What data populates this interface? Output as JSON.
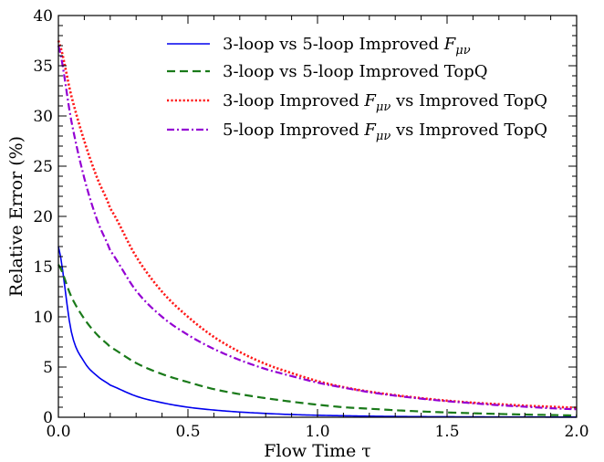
{
  "chart_data": {
    "type": "line",
    "xlabel": "Flow Time τ",
    "ylabel": "Relative Error (%)",
    "xlim": [
      0.0,
      2.0
    ],
    "ylim": [
      0,
      40
    ],
    "x_ticks": [
      0.0,
      0.5,
      1.0,
      1.5,
      2.0
    ],
    "x_tick_labels": [
      "0.0",
      "0.5",
      "1.0",
      "1.5",
      "2.0"
    ],
    "y_ticks": [
      0,
      5,
      10,
      15,
      20,
      25,
      30,
      35,
      40
    ],
    "y_tick_labels": [
      "0",
      "5",
      "10",
      "15",
      "20",
      "25",
      "30",
      "35",
      "40"
    ],
    "grid": false,
    "legend_position": "top-right",
    "x": [
      0.0,
      0.05,
      0.1,
      0.15,
      0.2,
      0.3,
      0.4,
      0.5,
      0.6,
      0.7,
      0.8,
      0.9,
      1.0,
      1.1,
      1.2,
      1.3,
      1.4,
      1.5,
      1.6,
      1.7,
      1.8,
      1.9,
      2.0
    ],
    "series": [
      {
        "name": "3-loop vs 5-loop Improved Fμν",
        "color": "#0000ee",
        "style": "solid",
        "values": [
          17.0,
          8.5,
          5.5,
          4.1,
          3.2,
          2.1,
          1.45,
          1.0,
          0.72,
          0.52,
          0.38,
          0.27,
          0.2,
          0.15,
          0.11,
          0.08,
          0.06,
          0.05,
          0.04,
          0.03,
          0.03,
          0.02,
          0.02
        ]
      },
      {
        "name": "3-loop vs 5-loop Improved TopQ",
        "color": "#1a7a1a",
        "style": "dashed",
        "values": [
          15.2,
          12.0,
          9.8,
          8.2,
          7.0,
          5.4,
          4.3,
          3.5,
          2.8,
          2.3,
          1.9,
          1.55,
          1.25,
          1.0,
          0.85,
          0.7,
          0.58,
          0.48,
          0.4,
          0.33,
          0.27,
          0.22,
          0.18
        ]
      },
      {
        "name": "3-loop Improved Fμν vs Improved TopQ",
        "color": "#ff1a1a",
        "style": "dotted",
        "values": [
          37.5,
          32.0,
          27.5,
          23.8,
          20.8,
          16.0,
          12.5,
          10.0,
          8.0,
          6.5,
          5.3,
          4.4,
          3.6,
          3.0,
          2.55,
          2.2,
          1.9,
          1.65,
          1.45,
          1.3,
          1.15,
          1.05,
          0.95
        ]
      },
      {
        "name": "5-loop Improved Fμν vs Improved TopQ",
        "color": "#9400d3",
        "style": "dashdot",
        "values": [
          37.0,
          29.5,
          23.8,
          19.6,
          16.6,
          12.6,
          10.0,
          8.2,
          6.8,
          5.7,
          4.8,
          4.1,
          3.45,
          2.95,
          2.5,
          2.15,
          1.85,
          1.6,
          1.4,
          1.2,
          1.05,
          0.9,
          0.8
        ]
      }
    ],
    "legend": [
      {
        "prefix": "3-loop vs 5-loop Improved ",
        "math": "F",
        "sub": "μν",
        "suffix": ""
      },
      {
        "prefix": "3-loop vs 5-loop Improved TopQ",
        "math": "",
        "sub": "",
        "suffix": ""
      },
      {
        "prefix": "3-loop Improved ",
        "math": "F",
        "sub": "μν",
        "suffix": " vs Improved TopQ"
      },
      {
        "prefix": "5-loop Improved ",
        "math": "F",
        "sub": "μν",
        "suffix": " vs Improved TopQ"
      }
    ]
  }
}
